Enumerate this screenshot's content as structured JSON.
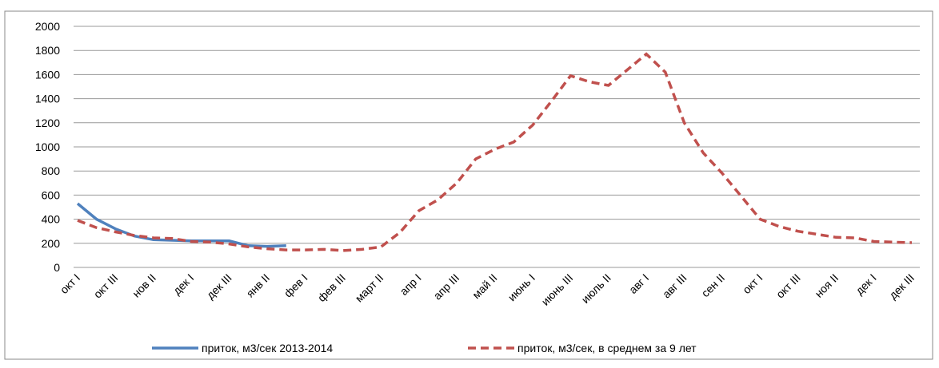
{
  "chart_data": {
    "type": "line",
    "categories": [
      "окт I",
      null,
      "окт III",
      null,
      "нов II",
      null,
      "дек I",
      null,
      "дек III",
      null,
      "янв II",
      null,
      "фев I",
      null,
      "фев III",
      null,
      "март II",
      null,
      "апр I",
      null,
      "апр III",
      null,
      "май II",
      null,
      "июнь I",
      null,
      "июнь III",
      null,
      "июль II",
      null,
      "авг I",
      null,
      "авг III",
      null,
      "сен II",
      null,
      "окт I",
      null,
      "окт III",
      null,
      "ноя II",
      null,
      "дек I",
      null,
      "дек III"
    ],
    "series": [
      {
        "name": "приток, м3/сек 2013-2014",
        "color": "#4f81bd",
        "dash": false,
        "values": [
          530,
          400,
          320,
          260,
          230,
          225,
          220,
          220,
          220,
          180,
          175,
          180,
          null,
          null,
          null,
          null,
          null,
          null,
          null,
          null,
          null,
          null,
          null,
          null,
          null,
          null,
          null,
          null,
          null,
          null,
          null,
          null,
          null,
          null,
          null,
          null,
          null,
          null,
          null,
          null,
          null,
          null,
          null,
          null,
          null
        ]
      },
      {
        "name": "приток, м3/сек, в среднем за 9 лет",
        "color": "#c0504d",
        "dash": true,
        "values": [
          390,
          330,
          295,
          265,
          245,
          240,
          215,
          210,
          195,
          170,
          155,
          145,
          145,
          150,
          140,
          150,
          170,
          290,
          470,
          560,
          700,
          900,
          980,
          1040,
          1180,
          1380,
          1590,
          1540,
          1510,
          1640,
          1770,
          1620,
          1200,
          950,
          780,
          590,
          400,
          340,
          300,
          275,
          250,
          245,
          215,
          210,
          205
        ]
      }
    ],
    "ylim": [
      0,
      2000
    ],
    "yticks": [
      0,
      200,
      400,
      600,
      800,
      1000,
      1200,
      1400,
      1600,
      1800,
      2000
    ],
    "grid": true,
    "legend": "bottom"
  }
}
